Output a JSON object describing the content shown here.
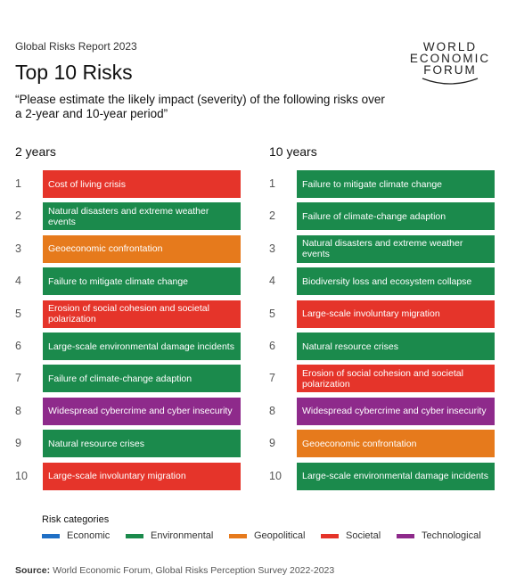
{
  "header": {
    "subtitle": "Global Risks Report 2023",
    "title": "Top 10 Risks",
    "question": "“Please estimate the likely impact (severity) of the following risks over a 2-year and 10-year period”",
    "logo": [
      "WORLD",
      "ECONOMIC",
      "FORUM"
    ]
  },
  "columns": [
    {
      "heading": "2 years",
      "rows": [
        {
          "rank": "1",
          "label": "Cost of living crisis",
          "color": "#e5342a"
        },
        {
          "rank": "2",
          "label": "Natural disasters and extreme weather events",
          "color": "#1b8a4c"
        },
        {
          "rank": "3",
          "label": "Geoeconomic confrontation",
          "color": "#e67a1c"
        },
        {
          "rank": "4",
          "label": "Failure to mitigate climate change",
          "color": "#1b8a4c"
        },
        {
          "rank": "5",
          "label": "Erosion of social cohesion and societal polarization",
          "color": "#e5342a"
        },
        {
          "rank": "6",
          "label": "Large-scale environmental damage incidents",
          "color": "#1b8a4c"
        },
        {
          "rank": "7",
          "label": "Failure of climate-change adaption",
          "color": "#1b8a4c"
        },
        {
          "rank": "8",
          "label": "Widespread cybercrime and cyber insecurity",
          "color": "#8e2a8b"
        },
        {
          "rank": "9",
          "label": "Natural resource crises",
          "color": "#1b8a4c"
        },
        {
          "rank": "10",
          "label": "Large-scale involuntary migration",
          "color": "#e5342a"
        }
      ]
    },
    {
      "heading": "10 years",
      "rows": [
        {
          "rank": "1",
          "label": "Failure to mitigate climate change",
          "color": "#1b8a4c"
        },
        {
          "rank": "2",
          "label": "Failure of climate-change adaption",
          "color": "#1b8a4c"
        },
        {
          "rank": "3",
          "label": "Natural disasters and extreme weather events",
          "color": "#1b8a4c"
        },
        {
          "rank": "4",
          "label": "Biodiversity loss and ecosystem collapse",
          "color": "#1b8a4c"
        },
        {
          "rank": "5",
          "label": "Large-scale involuntary migration",
          "color": "#e5342a"
        },
        {
          "rank": "6",
          "label": "Natural resource crises",
          "color": "#1b8a4c"
        },
        {
          "rank": "7",
          "label": "Erosion of social cohesion and societal polarization",
          "color": "#e5342a"
        },
        {
          "rank": "8",
          "label": "Widespread cybercrime and cyber insecurity",
          "color": "#8e2a8b"
        },
        {
          "rank": "9",
          "label": "Geoeconomic confrontation",
          "color": "#e67a1c"
        },
        {
          "rank": "10",
          "label": "Large-scale environmental damage incidents",
          "color": "#1b8a4c"
        }
      ]
    }
  ],
  "legend": {
    "title": "Risk categories",
    "items": [
      {
        "name": "Economic",
        "color": "#1f6fc5"
      },
      {
        "name": "Environmental",
        "color": "#1b8a4c"
      },
      {
        "name": "Geopolitical",
        "color": "#e67a1c"
      },
      {
        "name": "Societal",
        "color": "#e5342a"
      },
      {
        "name": "Technological",
        "color": "#8e2a8b"
      }
    ]
  },
  "source": {
    "label": "Source:",
    "text": "World Economic Forum, Global Risks Perception Survey 2022-2023"
  }
}
